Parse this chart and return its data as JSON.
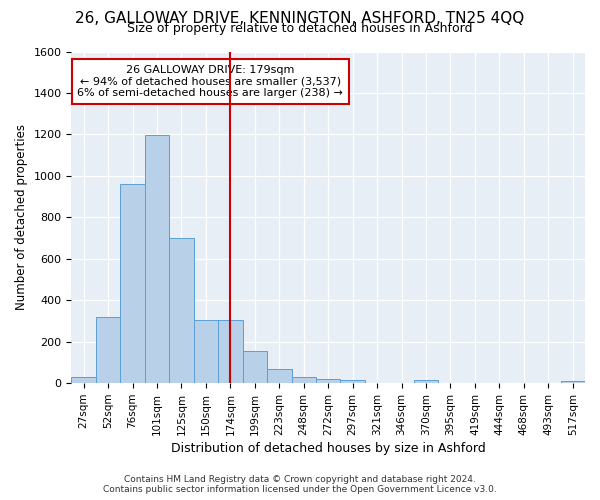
{
  "title": "26, GALLOWAY DRIVE, KENNINGTON, ASHFORD, TN25 4QQ",
  "subtitle": "Size of property relative to detached houses in Ashford",
  "xlabel": "Distribution of detached houses by size in Ashford",
  "ylabel": "Number of detached properties",
  "bar_labels": [
    "27sqm",
    "52sqm",
    "76sqm",
    "101sqm",
    "125sqm",
    "150sqm",
    "174sqm",
    "199sqm",
    "223sqm",
    "248sqm",
    "272sqm",
    "297sqm",
    "321sqm",
    "346sqm",
    "370sqm",
    "395sqm",
    "419sqm",
    "444sqm",
    "468sqm",
    "493sqm",
    "517sqm"
  ],
  "bar_values": [
    28,
    320,
    960,
    1195,
    700,
    305,
    305,
    155,
    70,
    30,
    20,
    15,
    0,
    0,
    15,
    0,
    0,
    0,
    0,
    0,
    10
  ],
  "bar_color": "#b8d0e8",
  "bar_edge_color": "#5a9fd4",
  "vline_x_index": 6,
  "vline_color": "#cc0000",
  "annotation_text": "26 GALLOWAY DRIVE: 179sqm\n← 94% of detached houses are smaller (3,537)\n6% of semi-detached houses are larger (238) →",
  "annotation_box_color": "#ffffff",
  "annotation_box_edge_color": "#cc0000",
  "ylim": [
    0,
    1600
  ],
  "yticks": [
    0,
    200,
    400,
    600,
    800,
    1000,
    1200,
    1400,
    1600
  ],
  "background_color": "#e8eef6",
  "title_fontsize": 11,
  "subtitle_fontsize": 9,
  "footer_line1": "Contains HM Land Registry data © Crown copyright and database right 2024.",
  "footer_line2": "Contains public sector information licensed under the Open Government Licence v3.0."
}
